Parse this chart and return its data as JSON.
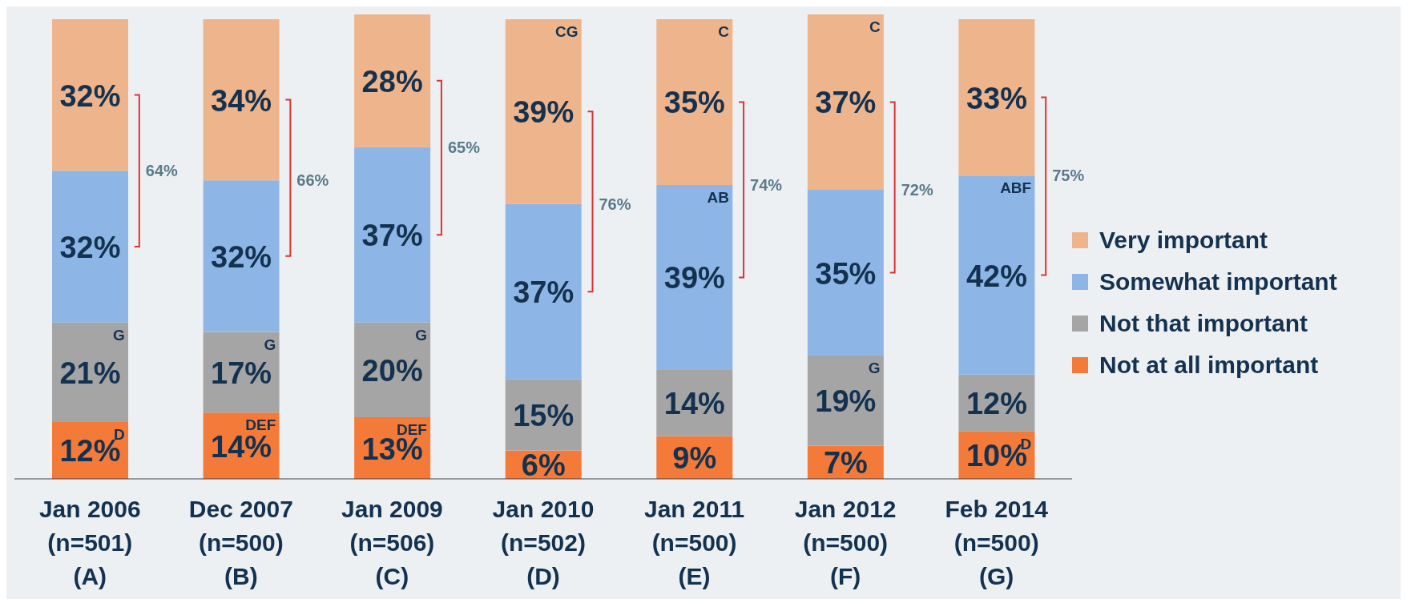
{
  "chart_data": {
    "type": "bar",
    "stacked": true,
    "legend": "right",
    "categories": [
      "Jan 2006\n(n=501)\n(A)",
      "Dec 2007\n(n=500)\n(B)",
      "Jan 2009\n(n=506)\n(C)",
      "Jan 2010\n(n=502)\n(D)",
      "Jan 2011\n(n=500)\n(E)",
      "Jan 2012\n(n=500)\n(F)",
      "Feb 2014\n(n=500)\n(G)"
    ],
    "series": [
      {
        "name": "Not at all important",
        "color": "#f47a3a",
        "values": [
          12,
          14,
          13,
          6,
          9,
          7,
          10
        ],
        "value_labels": [
          "12%",
          "14%",
          "13%",
          "6%",
          "9%",
          "7%",
          "10%"
        ]
      },
      {
        "name": "Not that important",
        "color": "#a5a5a5",
        "values": [
          21,
          17,
          20,
          15,
          14,
          19,
          12
        ],
        "value_labels": [
          "21%",
          "17%",
          "20%",
          "15%",
          "14%",
          "19%",
          "12%"
        ]
      },
      {
        "name": "Somewhat important",
        "color": "#8db6e6",
        "values": [
          32,
          32,
          37,
          37,
          39,
          35,
          42
        ],
        "value_labels": [
          "32%",
          "32%",
          "37%",
          "37%",
          "39%",
          "35%",
          "42%"
        ]
      },
      {
        "name": "Very important",
        "color": "#eeb48c",
        "values": [
          32,
          34,
          28,
          39,
          35,
          37,
          33
        ],
        "value_labels": [
          "32%",
          "34%",
          "28%",
          "39%",
          "35%",
          "37%",
          "33%"
        ]
      }
    ],
    "annotations": [
      "64%",
      "66%",
      "65%",
      "76%",
      "74%",
      "72%",
      "75%",
      {
        "text": "G",
        "x": "Jan 2006\n(n=501)\n(A)",
        "y": 33
      },
      {
        "text": "D",
        "x": "Jan 2006\n(n=501)\n(A)",
        "y": 12
      },
      {
        "text": "G",
        "x": "Dec 2007\n(n=500)\n(B)",
        "y": 31
      },
      {
        "text": "DEF",
        "x": "Dec 2007\n(n=500)\n(B)",
        "y": 14
      },
      {
        "text": "G",
        "x": "Jan 2009\n(n=506)\n(C)",
        "y": 33
      },
      {
        "text": "DEF",
        "x": "Jan 2009\n(n=506)\n(C)",
        "y": 13
      },
      {
        "text": "CG",
        "x": "Jan 2010\n(n=502)\n(D)",
        "y": 97
      },
      {
        "text": "C",
        "x": "Jan 2011\n(n=500)\n(E)",
        "y": 97
      },
      {
        "text": "AB",
        "x": "Jan 2011\n(n=500)\n(E)",
        "y": 62
      },
      {
        "text": "C",
        "x": "Jan 2012\n(n=500)\n(F)",
        "y": 98
      },
      {
        "text": "G",
        "x": "Jan 2012\n(n=500)\n(F)",
        "y": 26
      },
      {
        "text": "ABF",
        "x": "Feb 2014\n(n=500)\n(G)",
        "y": 64
      },
      {
        "text": "D",
        "x": "Feb 2014\n(n=500)\n(G)",
        "y": 10
      }
    ]
  }
}
